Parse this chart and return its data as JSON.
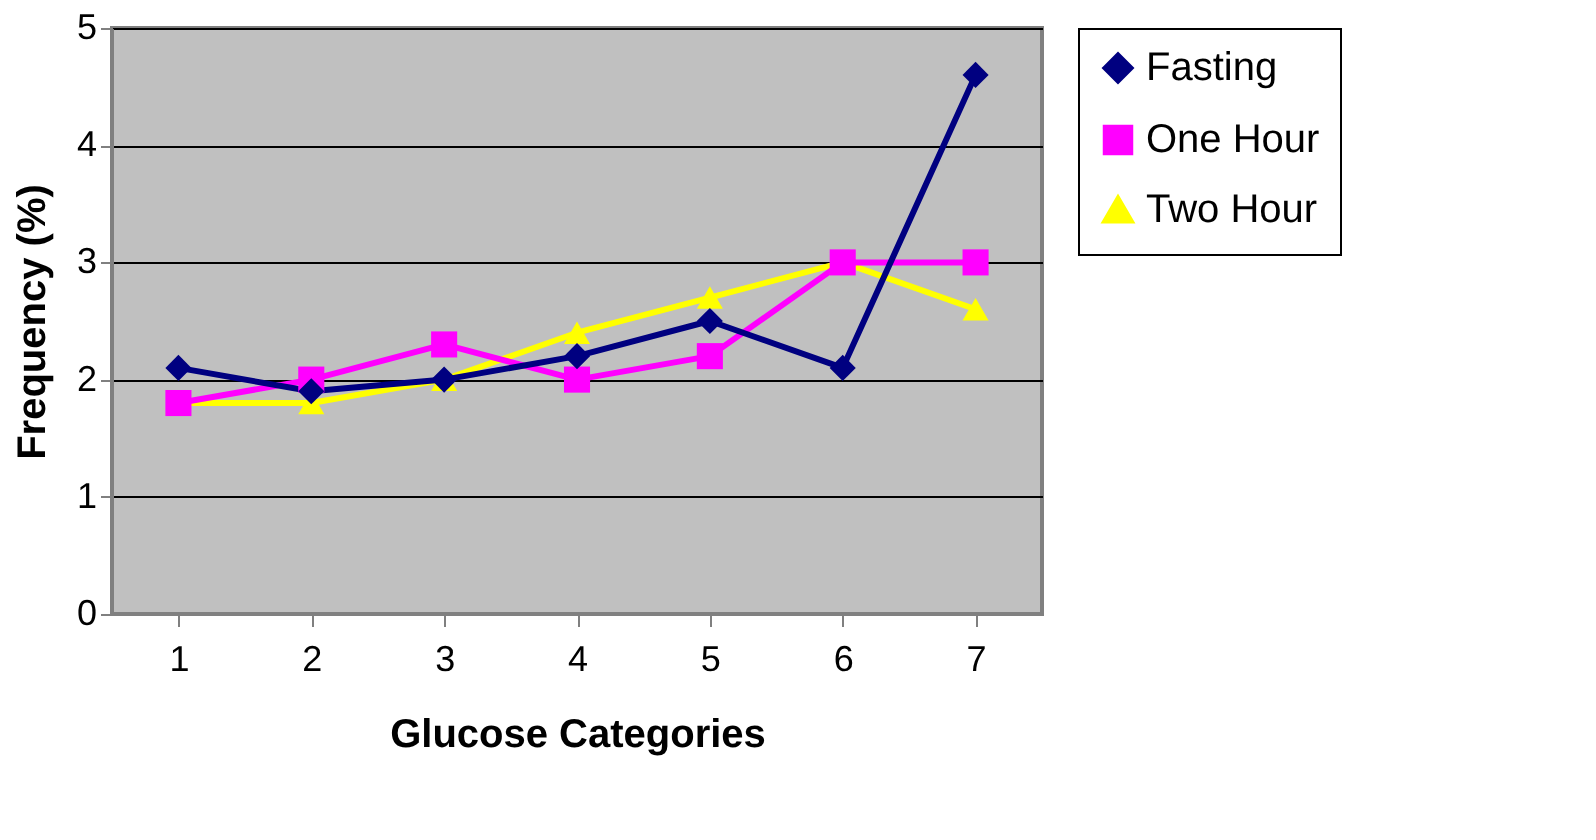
{
  "chart_data": {
    "type": "line",
    "xlabel": "Glucose Categories",
    "ylabel": "Frequency (%)",
    "categories": [
      "1",
      "2",
      "3",
      "4",
      "5",
      "6",
      "7"
    ],
    "series": [
      {
        "name": "Fasting",
        "color": "#000080",
        "marker": "diamond",
        "values": [
          2.1,
          1.9,
          2.0,
          2.2,
          2.5,
          2.1,
          4.6
        ]
      },
      {
        "name": "One Hour",
        "color": "#ff00ff",
        "marker": "square",
        "values": [
          1.8,
          2.0,
          2.3,
          2.0,
          2.2,
          3.0,
          3.0
        ]
      },
      {
        "name": "Two Hour",
        "color": "#ffff00",
        "marker": "triangle",
        "values": [
          1.8,
          1.8,
          2.0,
          2.4,
          2.7,
          3.0,
          2.6
        ]
      }
    ],
    "ylim": [
      0,
      5
    ],
    "yticks": [
      0,
      1,
      2,
      3,
      4,
      5
    ],
    "grid": "y",
    "legend": "right",
    "line_style": "solid"
  }
}
